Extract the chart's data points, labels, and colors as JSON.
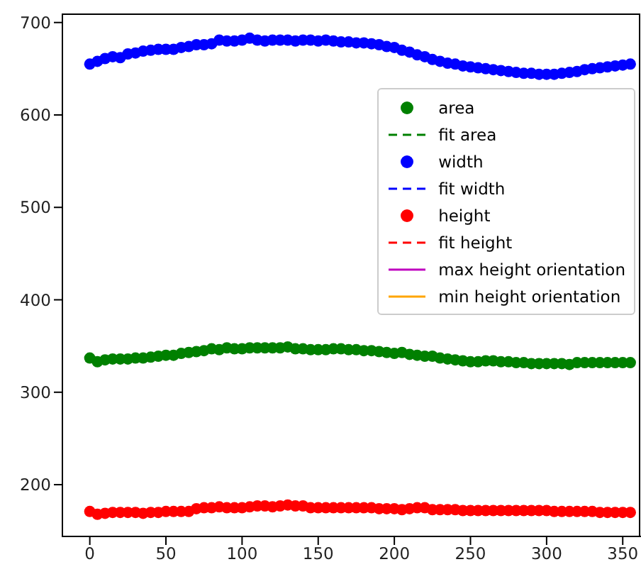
{
  "chart_data": {
    "type": "scatter",
    "xlim": [
      -18,
      362
    ],
    "ylim": [
      144,
      709
    ],
    "xticks": [
      0,
      50,
      100,
      150,
      200,
      250,
      300,
      350
    ],
    "yticks": [
      200,
      300,
      400,
      500,
      600,
      700
    ],
    "legend": "right",
    "marker": "circle",
    "x": [
      0,
      5,
      10,
      15,
      20,
      25,
      30,
      35,
      40,
      45,
      50,
      55,
      60,
      65,
      70,
      75,
      80,
      85,
      90,
      95,
      100,
      105,
      110,
      115,
      120,
      125,
      130,
      135,
      140,
      145,
      150,
      155,
      160,
      165,
      170,
      175,
      180,
      185,
      190,
      195,
      200,
      205,
      210,
      215,
      220,
      225,
      230,
      235,
      240,
      245,
      250,
      255,
      260,
      265,
      270,
      275,
      280,
      285,
      290,
      295,
      300,
      305,
      310,
      315,
      320,
      325,
      330,
      335,
      340,
      345,
      350,
      355
    ],
    "series": [
      {
        "name": "area",
        "color": "#008000",
        "values": [
          337,
          333,
          335,
          336,
          336,
          336,
          337,
          337,
          338,
          339,
          340,
          340,
          342,
          343,
          344,
          345,
          347,
          346,
          348,
          347,
          347,
          348,
          348,
          348,
          348,
          348,
          349,
          347,
          347,
          346,
          346,
          346,
          347,
          347,
          346,
          346,
          345,
          345,
          344,
          343,
          342,
          343,
          341,
          340,
          339,
          339,
          337,
          336,
          335,
          334,
          333,
          333,
          334,
          334,
          333,
          333,
          332,
          332,
          331,
          331,
          331,
          331,
          331,
          330,
          332,
          332,
          332,
          332,
          332,
          332,
          332,
          332
        ]
      },
      {
        "name": "fit area",
        "type": "line",
        "line_style": "dashed",
        "color": "#008000",
        "values": [
          null,
          null,
          null,
          null,
          null,
          null,
          null,
          null,
          null,
          null,
          null,
          null,
          null,
          null,
          null,
          null,
          null,
          null,
          null,
          null,
          null,
          null,
          null,
          null,
          null,
          null,
          null,
          null,
          null,
          null,
          null,
          null,
          null,
          null,
          null,
          null,
          null,
          null,
          null,
          null,
          null,
          null,
          null,
          null,
          null,
          null,
          null,
          null,
          null,
          null,
          null,
          null,
          null,
          null,
          null,
          null,
          null,
          null,
          null,
          null,
          null,
          null,
          null,
          null,
          null,
          null,
          null,
          null,
          null,
          null,
          null,
          null
        ]
      },
      {
        "name": "width",
        "color": "#0000ff",
        "values": [
          655,
          658,
          661,
          663,
          662,
          666,
          667,
          669,
          670,
          671,
          671,
          671,
          673,
          674,
          676,
          676,
          677,
          681,
          680,
          680,
          681,
          683,
          681,
          680,
          681,
          681,
          681,
          680,
          681,
          681,
          680,
          681,
          680,
          679,
          679,
          678,
          678,
          677,
          676,
          674,
          673,
          670,
          668,
          665,
          663,
          660,
          658,
          656,
          655,
          653,
          652,
          651,
          650,
          649,
          648,
          647,
          646,
          645,
          645,
          644,
          644,
          644,
          645,
          646,
          647,
          649,
          650,
          651,
          652,
          653,
          654,
          655
        ]
      },
      {
        "name": "fit width",
        "type": "line",
        "line_style": "dashed",
        "color": "#0000ff",
        "values": [
          null,
          null,
          null,
          null,
          null,
          null,
          null,
          null,
          null,
          null,
          null,
          null,
          null,
          null,
          null,
          null,
          null,
          null,
          null,
          null,
          null,
          null,
          null,
          null,
          null,
          null,
          null,
          null,
          null,
          null,
          null,
          null,
          null,
          null,
          null,
          null,
          null,
          null,
          null,
          null,
          null,
          null,
          null,
          null,
          null,
          null,
          null,
          null,
          null,
          null,
          null,
          null,
          null,
          null,
          null,
          null,
          null,
          null,
          null,
          null,
          null,
          null,
          null,
          null,
          null,
          null,
          null,
          null,
          null,
          null,
          null,
          null
        ]
      },
      {
        "name": "height",
        "color": "#ff0000",
        "values": [
          171,
          168,
          169,
          170,
          170,
          170,
          170,
          169,
          170,
          170,
          171,
          171,
          171,
          171,
          174,
          175,
          175,
          176,
          175,
          175,
          175,
          176,
          177,
          177,
          176,
          177,
          178,
          177,
          177,
          175,
          175,
          175,
          175,
          175,
          175,
          175,
          175,
          175,
          174,
          174,
          174,
          173,
          174,
          175,
          175,
          173,
          173,
          173,
          173,
          172,
          172,
          172,
          172,
          172,
          172,
          172,
          172,
          172,
          172,
          172,
          172,
          171,
          171,
          171,
          171,
          171,
          171,
          170,
          170,
          170,
          170,
          170
        ]
      },
      {
        "name": "fit height",
        "type": "line",
        "line_style": "dashed",
        "color": "#ff0000",
        "values": [
          null,
          null,
          null,
          null,
          null,
          null,
          null,
          null,
          null,
          null,
          null,
          null,
          null,
          null,
          null,
          null,
          null,
          null,
          null,
          null,
          null,
          null,
          null,
          null,
          null,
          null,
          null,
          null,
          null,
          null,
          null,
          null,
          null,
          null,
          null,
          null,
          null,
          null,
          null,
          null,
          null,
          null,
          null,
          null,
          null,
          null,
          null,
          null,
          null,
          null,
          null,
          null,
          null,
          null,
          null,
          null,
          null,
          null,
          null,
          null,
          null,
          null,
          null,
          null,
          null,
          null,
          null,
          null,
          null,
          null,
          null,
          null
        ]
      },
      {
        "name": "max height orientation",
        "type": "line",
        "line_style": "solid",
        "color": "#bf00bf",
        "values": [
          null,
          null,
          null,
          null,
          null,
          null,
          null,
          null,
          null,
          null,
          null,
          null,
          null,
          null,
          null,
          null,
          null,
          null,
          null,
          null,
          null,
          null,
          null,
          null,
          null,
          null,
          null,
          null,
          null,
          null,
          null,
          null,
          null,
          null,
          null,
          null,
          null,
          null,
          null,
          null,
          null,
          null,
          null,
          null,
          null,
          null,
          null,
          null,
          null,
          null,
          null,
          null,
          null,
          null,
          null,
          null,
          null,
          null,
          null,
          null,
          null,
          null,
          null,
          null,
          null,
          null,
          null,
          null,
          null,
          null,
          null,
          null
        ]
      },
      {
        "name": "min height orientation",
        "type": "line",
        "line_style": "solid",
        "color": "#ffa500",
        "values": [
          null,
          null,
          null,
          null,
          null,
          null,
          null,
          null,
          null,
          null,
          null,
          null,
          null,
          null,
          null,
          null,
          null,
          null,
          null,
          null,
          null,
          null,
          null,
          null,
          null,
          null,
          null,
          null,
          null,
          null,
          null,
          null,
          null,
          null,
          null,
          null,
          null,
          null,
          null,
          null,
          null,
          null,
          null,
          null,
          null,
          null,
          null,
          null,
          null,
          null,
          null,
          null,
          null,
          null,
          null,
          null,
          null,
          null,
          null,
          null,
          null,
          null,
          null,
          null,
          null,
          null,
          null,
          null,
          null,
          null,
          null,
          null
        ]
      }
    ]
  }
}
